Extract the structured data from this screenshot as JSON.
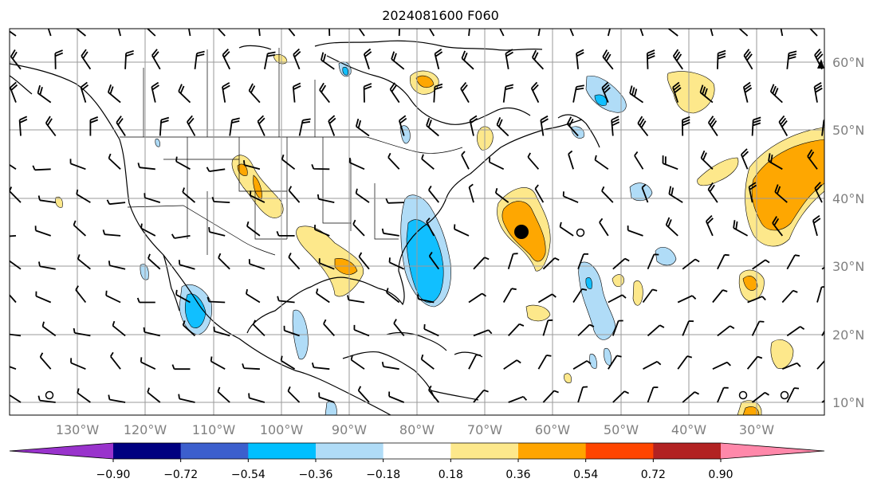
{
  "title": "2024081600 F060",
  "map": {
    "lon_labels": [
      "130°W",
      "120°W",
      "110°W",
      "100°W",
      "90°W",
      "80°W",
      "70°W",
      "60°W",
      "50°W",
      "40°W",
      "30°W"
    ],
    "lat_labels": [
      "60°N",
      "50°N",
      "40°N",
      "30°N",
      "20°N",
      "10°N"
    ],
    "grid": true,
    "storm_marker": "filled-circle",
    "fill_colors": {
      "pos_weak": "#fde88b",
      "pos_mid": "#fea701",
      "neg_weak": "#b0dcf7",
      "neg_mid": "#11bfff"
    }
  },
  "colorbar": {
    "labels": [
      "−0.90",
      "−0.72",
      "−0.54",
      "−0.36",
      "−0.18",
      "0.18",
      "0.36",
      "0.54",
      "0.72",
      "0.90"
    ],
    "colors": [
      "#9933cc",
      "#000080",
      "#3c5fcd",
      "#00bfff",
      "#b0dcf7",
      "#ffffff",
      "#fde88b",
      "#ffa500",
      "#ff4500",
      "#b22222",
      "#ff88aa"
    ]
  }
}
